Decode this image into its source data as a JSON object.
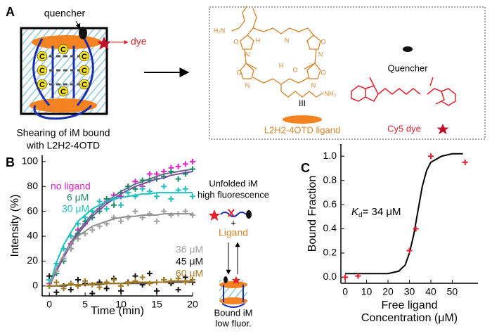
{
  "panel_labels": [
    "A",
    "B",
    "C"
  ],
  "panel_a": {
    "quencher_label": "quencher",
    "dye_label": "dye",
    "base": "C",
    "caption": [
      "Shearing of iM bound",
      "with L2H2-4OTD"
    ],
    "atoms": [
      "H₂N",
      "NH₂",
      "O",
      "N",
      "N",
      "O",
      "H",
      "N",
      "O",
      "N",
      "N",
      "O",
      "H",
      "O"
    ],
    "compound_number": "III",
    "ligand_label": "L2H2-4OTD ligand",
    "quencher_name": "Quencher",
    "dye_name": "Cy5 dye"
  },
  "panel_b_scheme": {
    "unfolded": [
      "Unfolded iM",
      "high fluorescence"
    ],
    "plus": "+",
    "ligand": "Ligand",
    "bound": [
      "Bound iM",
      "low fluor."
    ]
  },
  "chart_data": [
    {
      "type": "scatter",
      "xlabel": "Time (min)",
      "ylabel": "Intensity (%)",
      "xlim": [
        -1,
        20
      ],
      "xticks": [
        0,
        5,
        10,
        15,
        20
      ],
      "ylim": [
        -8,
        105
      ],
      "yticks": [
        0,
        20,
        40,
        60,
        80,
        100
      ],
      "x": [
        0,
        1,
        2,
        3,
        4,
        5,
        6,
        7,
        8,
        9,
        10,
        11,
        12,
        13,
        14,
        15,
        16,
        17,
        18,
        19,
        20
      ],
      "series": [
        {
          "name": "no ligand",
          "color": "#e020c8",
          "fit_color": "#6a6a8a",
          "values": [
            2,
            12,
            22,
            34,
            45,
            50,
            60,
            62,
            68,
            73,
            72,
            80,
            84,
            80,
            90,
            90,
            92,
            95,
            96,
            98,
            100
          ],
          "fit": [
            0,
            13,
            25,
            35,
            44,
            51,
            58,
            63,
            68,
            72,
            76,
            79,
            82,
            84,
            86,
            88,
            90,
            91,
            92,
            93,
            94
          ]
        },
        {
          "name": "6 μM",
          "color": "#1a8a60",
          "fit_color": "#7050a0",
          "values": [
            0,
            10,
            20,
            30,
            42,
            52,
            55,
            60,
            70,
            65,
            75,
            80,
            78,
            85,
            85,
            86,
            88,
            92,
            86,
            90,
            94
          ],
          "fit": [
            0,
            12,
            23,
            33,
            42,
            49,
            56,
            61,
            66,
            70,
            74,
            77,
            80,
            82,
            84,
            86,
            87,
            89,
            90,
            91,
            92
          ]
        },
        {
          "name": "30 μM",
          "color": "#20c0c0",
          "fit_color": "#20c0c0",
          "values": [
            5,
            18,
            30,
            40,
            50,
            55,
            60,
            68,
            62,
            70,
            65,
            75,
            72,
            78,
            76,
            72,
            80,
            70,
            77,
            78,
            72
          ],
          "fit": [
            0,
            19,
            33,
            43,
            52,
            57,
            62,
            65,
            68,
            70,
            71,
            72,
            73,
            74,
            74,
            75,
            75,
            75,
            75,
            75,
            75
          ]
        },
        {
          "name": "36 μM",
          "color": "#a0a0a0",
          "fit_color": "#909090",
          "values": [
            0,
            12,
            22,
            30,
            38,
            42,
            45,
            48,
            50,
            55,
            52,
            55,
            60,
            55,
            58,
            52,
            60,
            57,
            58,
            60,
            57
          ],
          "fit": [
            0,
            14,
            25,
            34,
            40,
            44,
            48,
            50,
            52,
            54,
            55,
            56,
            56,
            57,
            57,
            57,
            58,
            58,
            58,
            58,
            58
          ]
        },
        {
          "name": "45 μM",
          "color": "#111111",
          "fit_color": "#555555",
          "values": [
            8,
            -5,
            0,
            -3,
            5,
            2,
            -6,
            3,
            -2,
            6,
            -4,
            3,
            8,
            1,
            10,
            -4,
            5,
            2,
            -3,
            7,
            3
          ],
          "fit": [
            0,
            0,
            0,
            1,
            1,
            1,
            1,
            1,
            2,
            2,
            2,
            2,
            2,
            2,
            2,
            3,
            3,
            3,
            3,
            3,
            3
          ]
        },
        {
          "name": "60 μM",
          "color": "#a07820",
          "fit_color": "#a07820",
          "values": [
            0,
            3,
            -2,
            2,
            0,
            4,
            1,
            -1,
            3,
            5,
            0,
            2,
            4,
            7,
            2,
            3,
            5,
            4,
            6,
            3,
            5
          ],
          "fit": [
            0,
            0,
            1,
            1,
            1,
            1,
            2,
            2,
            2,
            2,
            2,
            3,
            3,
            3,
            3,
            3,
            3,
            4,
            4,
            4,
            4
          ]
        }
      ]
    },
    {
      "type": "scatter",
      "xlabel": [
        "Free ligand",
        "Concentration (μM)"
      ],
      "ylabel": "Bound Fraction",
      "annotation": {
        "symbol": "K",
        "subscript": "d",
        "text": "= 34 μM"
      },
      "xlim": [
        -2,
        62
      ],
      "xticks": [
        0,
        10,
        20,
        30,
        40,
        50
      ],
      "ylim": [
        -0.05,
        1.1
      ],
      "yticks": [
        {
          "value": 0,
          "label": "0.0"
        },
        {
          "value": 0.2,
          "label": "0.2"
        },
        {
          "value": 0.4,
          "label": "0.4"
        },
        {
          "value": 0.6,
          "label": "0.6"
        },
        {
          "value": 0.8,
          "label": "0.8"
        },
        {
          "value": 1,
          "label": "1.0"
        }
      ],
      "x": [
        0,
        6,
        30,
        33,
        40,
        56
      ],
      "values": [
        0,
        0.01,
        0.22,
        0.4,
        1.0,
        0.95
      ],
      "color": "#e0202a",
      "fit_x": [
        0,
        5,
        10,
        15,
        20,
        25,
        28,
        30,
        32,
        34,
        36,
        38,
        40,
        45,
        50,
        55
      ],
      "fit": [
        0.03,
        0.03,
        0.03,
        0.03,
        0.03,
        0.05,
        0.1,
        0.2,
        0.35,
        0.55,
        0.75,
        0.88,
        0.95,
        1.0,
        1.02,
        1.02
      ],
      "fit_color": "#000000"
    }
  ]
}
